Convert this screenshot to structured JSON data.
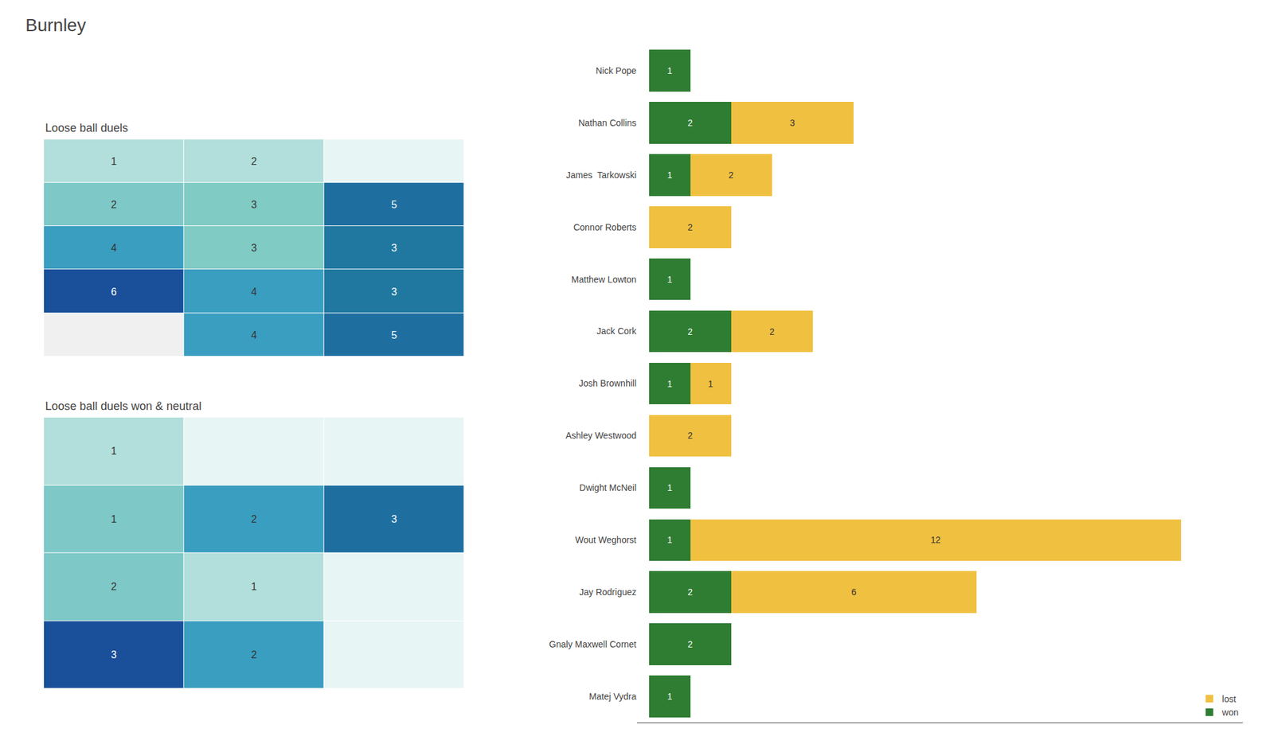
{
  "title": "Burnley",
  "chart_data": [
    {
      "type": "heatmap",
      "title": "Loose ball duels",
      "values": [
        [
          1,
          2,
          0
        ],
        [
          2,
          3,
          5
        ],
        [
          4,
          3,
          3
        ],
        [
          6,
          4,
          3
        ],
        [
          0,
          4,
          5
        ]
      ],
      "value_labels": [
        [
          "1",
          "2",
          null
        ],
        [
          "2",
          "3",
          "5"
        ],
        [
          "4",
          "3",
          "3"
        ],
        [
          "6",
          "4",
          "3"
        ],
        [
          null,
          "4",
          "5"
        ]
      ],
      "colors": [
        [
          "#b2dfdb",
          "#b2dfdb",
          "#e8f5f5"
        ],
        [
          "#7ec8c8",
          "#80cbc4",
          "#1e6fa0"
        ],
        [
          "#3a9ec0",
          "#80cbc4",
          "#2078a0"
        ],
        [
          "#1a4f9a",
          "#3a9ec0",
          "#2078a0"
        ],
        [
          "#f0f0f0",
          "#3a9ec0",
          "#1e6fa0"
        ]
      ],
      "data_labels": true,
      "tick_labels": false
    },
    {
      "type": "heatmap",
      "title": "Loose ball duels won & neutral",
      "values": [
        [
          1,
          0,
          0
        ],
        [
          1,
          2,
          3
        ],
        [
          2,
          1,
          0
        ],
        [
          3,
          2,
          0
        ]
      ],
      "value_labels": [
        [
          "1",
          null,
          null
        ],
        [
          "1",
          "2",
          "3"
        ],
        [
          "2",
          "1",
          null
        ],
        [
          "3",
          "2",
          null
        ]
      ],
      "colors": [
        [
          "#b2dfdb",
          "#e8f5f5",
          "#e8f5f5"
        ],
        [
          "#7ec8c8",
          "#3a9ec0",
          "#1e6fa0"
        ],
        [
          "#7ec8c8",
          "#b2dfdb",
          "#e8f5f5"
        ],
        [
          "#1a4f9a",
          "#3a9ec0",
          "#e8f5f5"
        ]
      ],
      "data_labels": true,
      "tick_labels": false
    },
    {
      "type": "bar",
      "orientation": "horizontal",
      "stacked": true,
      "categories": [
        "Nick Pope",
        "Nathan Collins",
        "James  Tarkowski",
        "Connor Roberts",
        "Matthew Lowton",
        "Jack Cork",
        "Josh Brownhill",
        "Ashley Westwood",
        "Dwight McNeil",
        "Wout Weghorst",
        "Jay Rodriguez",
        "Gnaly Maxwell Cornet",
        "Matej Vydra"
      ],
      "series": [
        {
          "name": "won",
          "color": "#2e7d32",
          "values": [
            1,
            2,
            1,
            0,
            1,
            2,
            1,
            0,
            1,
            1,
            2,
            2,
            1
          ],
          "value_labels": [
            "1",
            "2",
            "1",
            null,
            "1",
            "2",
            "1",
            null,
            "1",
            "1",
            "2",
            "2",
            "1"
          ]
        },
        {
          "name": "lost",
          "color": "#f0c040",
          "values": [
            0,
            3,
            2,
            2,
            0,
            2,
            1,
            2,
            0,
            12,
            6,
            0,
            0
          ],
          "value_labels": [
            null,
            "3",
            "2",
            "2",
            null,
            "2",
            "1",
            "2",
            null,
            "12",
            "6",
            null,
            null
          ]
        }
      ],
      "xlim": [
        -0.3,
        14.5
      ],
      "tick_labels": "y",
      "data_labels": true,
      "grid": false,
      "legend": "lower right"
    }
  ]
}
